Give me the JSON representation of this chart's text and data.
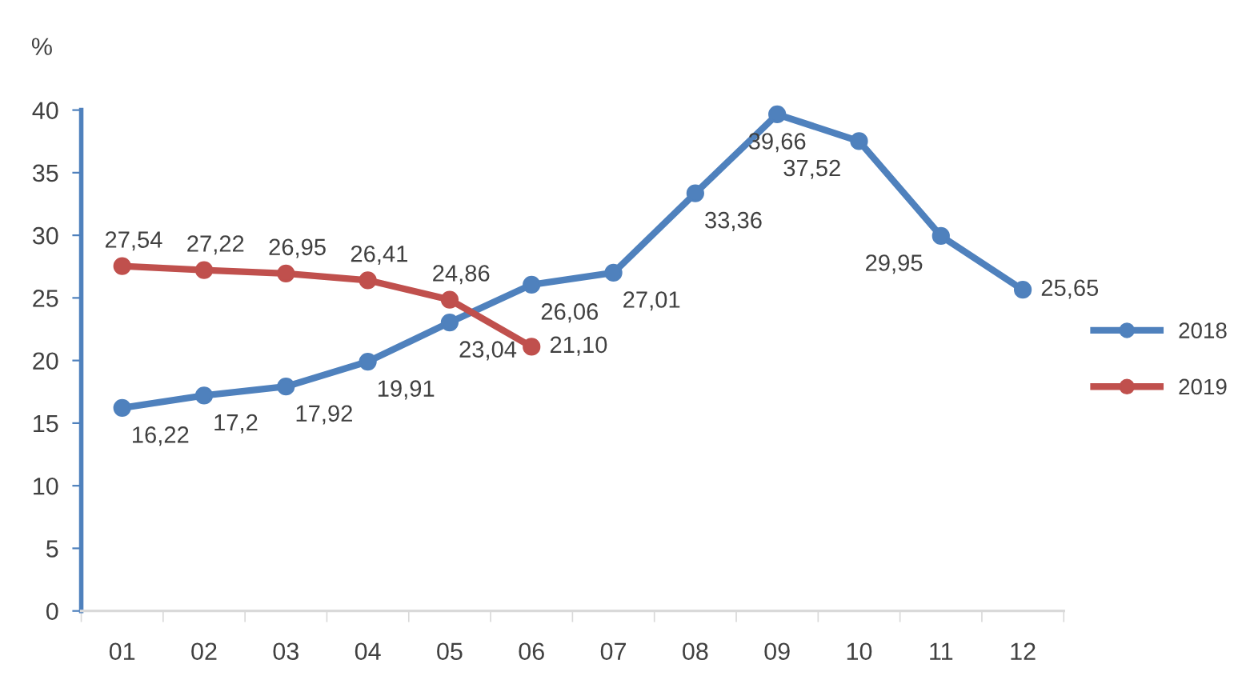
{
  "chart_data": {
    "type": "line",
    "ylabel": "%",
    "categories": [
      "01",
      "02",
      "03",
      "04",
      "05",
      "06",
      "07",
      "08",
      "09",
      "10",
      "11",
      "12"
    ],
    "series": [
      {
        "name": "2018",
        "color": "#4f81bd",
        "values": [
          16.22,
          17.2,
          17.92,
          19.91,
          23.04,
          26.06,
          27.01,
          33.36,
          39.66,
          37.52,
          29.95,
          25.65
        ],
        "value_labels": [
          "16,22",
          "17,2",
          "17,92",
          "19,91",
          "23,04",
          "26,06",
          "27,01",
          "33,36",
          "39,66",
          "37,52",
          "29,95",
          "25,65"
        ]
      },
      {
        "name": "2019",
        "color": "#c0504d",
        "values": [
          27.54,
          27.22,
          26.95,
          26.41,
          24.86,
          21.1,
          null,
          null,
          null,
          null,
          null,
          null
        ],
        "value_labels": [
          "27,54",
          "27,22",
          "26,95",
          "26,41",
          "24,86",
          "21,10",
          null,
          null,
          null,
          null,
          null,
          null
        ]
      }
    ],
    "ylim": [
      0,
      40
    ],
    "yticks": [
      0,
      5,
      10,
      15,
      20,
      25,
      30,
      35,
      40
    ],
    "grid": false,
    "legend": "right",
    "marker": "circle",
    "line_style": "solid"
  }
}
